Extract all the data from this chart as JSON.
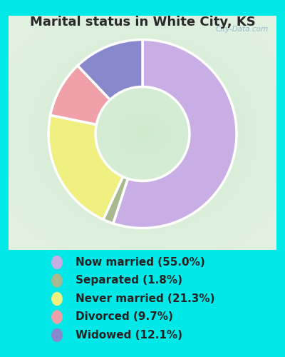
{
  "title": "Marital status in White City, KS",
  "slices": [
    55.0,
    1.8,
    21.3,
    9.7,
    12.1
  ],
  "labels": [
    "Now married (55.0%)",
    "Separated (1.8%)",
    "Never married (21.3%)",
    "Divorced (9.7%)",
    "Widowed (12.1%)"
  ],
  "slice_colors": [
    "#c8aee5",
    "#a8b890",
    "#f0f080",
    "#f0a0a8",
    "#8888cc"
  ],
  "bg_fig": "#00e8e8",
  "bg_chart_color": "#d0ead0",
  "title_color": "#2a2a2a",
  "legend_text_color": "#222222",
  "watermark_text": "City-Data.com",
  "watermark_color": "#99bbcc",
  "legend_fontsize": 11,
  "title_fontsize": 13,
  "donut_width": 0.5,
  "start_angle": 90
}
